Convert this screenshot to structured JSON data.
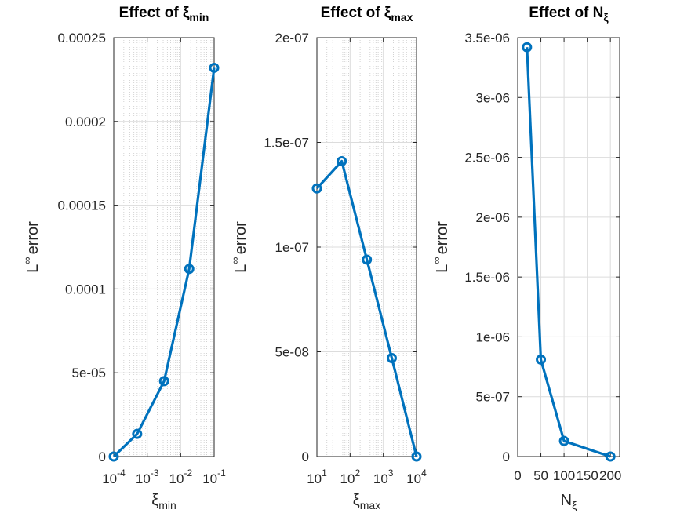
{
  "chart_data": [
    {
      "type": "line",
      "title": "Effect of ξmin",
      "title_main": "Effect of ξ",
      "title_sub": "min",
      "xscale": "log",
      "xlim": [
        0.0001,
        0.1
      ],
      "ylim": [
        0,
        0.00025
      ],
      "xticks": [
        {
          "base": "10",
          "exp": "-4"
        },
        {
          "base": "10",
          "exp": "-3"
        },
        {
          "base": "10",
          "exp": "-2"
        },
        {
          "base": "10",
          "exp": "-1"
        }
      ],
      "yticks": [
        "0",
        "5e-05",
        "0.0001",
        "0.00015",
        "0.0002",
        "0.00025"
      ],
      "xlabel": "ξmin",
      "xlabel_main": "ξ",
      "xlabel_sub": "min",
      "ylabel": "L∞ error",
      "grid": true,
      "minor_grid": true,
      "series": [
        {
          "color": "#0072bd",
          "marker": "circle",
          "x": [
            0.0001,
            0.0005,
            0.0032,
            0.018,
            0.1
          ],
          "y": [
            0,
            1.35e-05,
            4.5e-05,
            0.000112,
            0.000232
          ]
        }
      ]
    },
    {
      "type": "line",
      "title": "Effect of ξmax",
      "title_main": "Effect of ξ",
      "title_sub": "max",
      "xscale": "log",
      "xlim": [
        10,
        10000
      ],
      "ylim": [
        0,
        2e-07
      ],
      "xticks": [
        {
          "base": "10",
          "exp": "1"
        },
        {
          "base": "10",
          "exp": "2"
        },
        {
          "base": "10",
          "exp": "3"
        },
        {
          "base": "10",
          "exp": "4"
        }
      ],
      "yticks": [
        "0",
        "5e-08",
        "1e-07",
        "1.5e-07",
        "2e-07"
      ],
      "xlabel": "ξmax",
      "xlabel_main": "ξ",
      "xlabel_sub": "max",
      "ylabel": "L∞ error",
      "grid": true,
      "minor_grid": true,
      "series": [
        {
          "color": "#0072bd",
          "marker": "circle",
          "x": [
            10,
            56,
            320,
            1800,
            10000
          ],
          "y": [
            1.28e-07,
            1.41e-07,
            9.4e-08,
            4.7e-08,
            0
          ]
        }
      ]
    },
    {
      "type": "line",
      "title": "Effect of Nξ",
      "title_main": "Effect of N",
      "title_sub": "ξ",
      "xscale": "linear",
      "xlim": [
        0,
        220
      ],
      "ylim": [
        0,
        3.5e-06
      ],
      "xticks": [
        "0",
        "50",
        "100",
        "150",
        "200"
      ],
      "xtick_values": [
        0,
        50,
        100,
        150,
        200
      ],
      "yticks": [
        "0",
        "5e-07",
        "1e-06",
        "1.5e-06",
        "2e-06",
        "2.5e-06",
        "3e-06",
        "3.5e-06"
      ],
      "xlabel": "Nξ",
      "xlabel_main": "N",
      "xlabel_sub": "ξ",
      "ylabel": "L∞ error",
      "grid": true,
      "minor_grid": false,
      "series": [
        {
          "color": "#0072bd",
          "marker": "circle",
          "x": [
            20,
            50,
            100,
            200
          ],
          "y": [
            3.42e-06,
            8.1e-07,
            1.3e-07,
            0
          ]
        }
      ]
    }
  ],
  "ylabel_parts": {
    "L": "L",
    "sup": "∞",
    "rest": "error"
  }
}
